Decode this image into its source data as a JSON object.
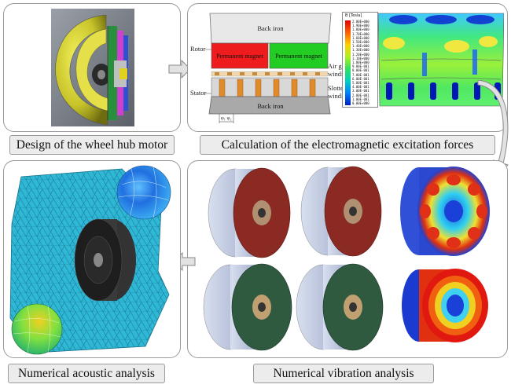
{
  "labels": {
    "design": "Design of the wheel hub motor",
    "calculation": "Calculation of the electromagnetic excitation forces",
    "vibration": "Numerical vibration analysis",
    "acoustic": "Numerical acoustic analysis"
  },
  "em_diagram": {
    "back_iron_top": "Back iron",
    "rotor": "Rotor",
    "pm_left": "Permanent magnet",
    "pm_right": "Permanent magnet",
    "air_gap_winding_1": "Air gap",
    "air_gap_winding_2": "winding",
    "slotted_winding_1": "Slotted",
    "slotted_winding_2": "winding",
    "stator": "Stator",
    "back_iron_bottom": "Back iron",
    "phi_label": "φ₁  φ₂"
  },
  "colorbar": {
    "title": "B [Tesla]",
    "values": [
      "2.00E+000",
      "1.90E+000",
      "1.80E+000",
      "1.70E+000",
      "1.60E+000",
      "1.50E+000",
      "1.40E+000",
      "1.30E+000",
      "1.20E+000",
      "1.10E+000",
      "1.00E+000",
      "9.00E-001",
      "8.00E-001",
      "7.00E-001",
      "6.00E-001",
      "5.00E-001",
      "4.00E-001",
      "3.00E-001",
      "2.00E-001",
      "1.00E-001",
      "0.00E+000"
    ]
  },
  "colors": {
    "panel_border": "#9a9a9a",
    "label_bg": "#ececec",
    "magnet_red": "#ee1c1c",
    "magnet_green": "#22cc22",
    "mesh_cyan": "#2fb7d6",
    "disc_red": "#8b2a22",
    "disc_green": "#2f5a40"
  }
}
